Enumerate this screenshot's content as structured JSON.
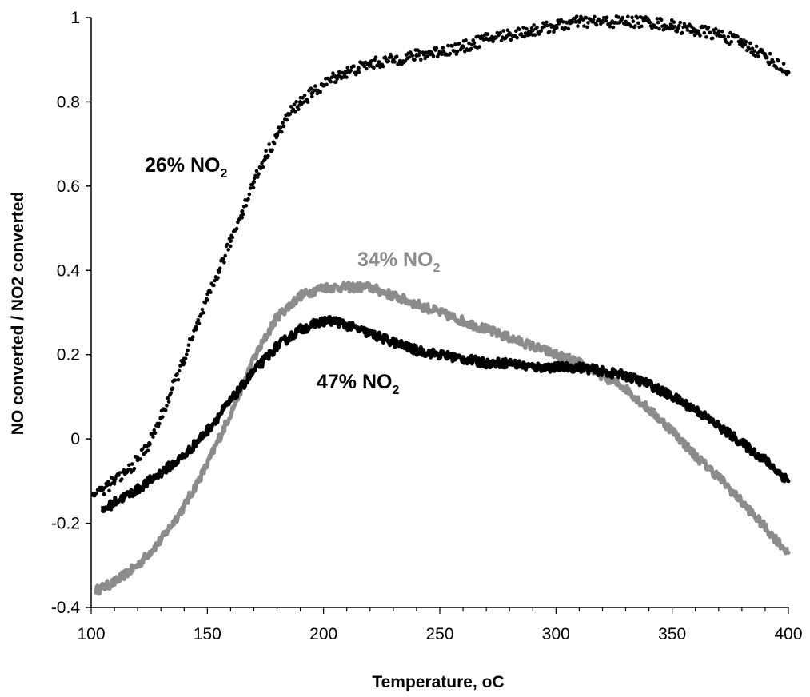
{
  "chart_data": {
    "type": "scatter",
    "title": "",
    "xlabel": "Temperature, ",
    "xlabel_unit": "oC",
    "ylabel": "NO converted / NO2 converted",
    "xlim": [
      100,
      400
    ],
    "ylim": [
      -0.4,
      1
    ],
    "x_ticks": [
      "100",
      "150",
      "200",
      "250",
      "300",
      "350",
      "400"
    ],
    "y_ticks": [
      "-0.4",
      "-0.2",
      "0",
      "0.2",
      "0.4",
      "0.6",
      "0.8",
      "1"
    ],
    "grid": false,
    "legend": "none",
    "series": [
      {
        "name": "26% NO2",
        "label_main": "26% NO",
        "label_sub": "2",
        "color": "#000000",
        "marker": "dot",
        "x": [
          101,
          105,
          110,
          115,
          120,
          125,
          130,
          135,
          140,
          145,
          150,
          155,
          160,
          165,
          170,
          175,
          180,
          185,
          190,
          195,
          200,
          205,
          210,
          215,
          220,
          230,
          240,
          250,
          260,
          270,
          280,
          290,
          300,
          310,
          320,
          330,
          340,
          350,
          360,
          370,
          380,
          390,
          400
        ],
        "y": [
          -0.13,
          -0.12,
          -0.1,
          -0.08,
          -0.05,
          -0.01,
          0.05,
          0.12,
          0.19,
          0.26,
          0.33,
          0.4,
          0.47,
          0.54,
          0.61,
          0.67,
          0.72,
          0.77,
          0.8,
          0.82,
          0.84,
          0.86,
          0.87,
          0.88,
          0.89,
          0.9,
          0.91,
          0.92,
          0.93,
          0.95,
          0.96,
          0.97,
          0.98,
          0.99,
          0.99,
          0.99,
          0.99,
          0.98,
          0.97,
          0.96,
          0.94,
          0.91,
          0.87
        ]
      },
      {
        "name": "34% NO2",
        "label_main": "34% NO",
        "label_sub": "2",
        "color": "#8c8c8c",
        "marker": "line",
        "x": [
          102,
          110,
          120,
          130,
          140,
          150,
          160,
          170,
          180,
          190,
          200,
          210,
          220,
          230,
          240,
          250,
          260,
          270,
          280,
          290,
          300,
          310,
          320,
          330,
          340,
          350,
          360,
          370,
          380,
          390,
          400
        ],
        "y": [
          -0.36,
          -0.34,
          -0.3,
          -0.24,
          -0.16,
          -0.06,
          0.06,
          0.19,
          0.29,
          0.34,
          0.36,
          0.36,
          0.36,
          0.34,
          0.32,
          0.3,
          0.28,
          0.26,
          0.24,
          0.22,
          0.2,
          0.18,
          0.15,
          0.12,
          0.07,
          0.02,
          -0.04,
          -0.09,
          -0.15,
          -0.21,
          -0.27
        ]
      },
      {
        "name": "47% NO2",
        "label_main": "47% NO",
        "label_sub": "2",
        "color": "#000000",
        "marker": "line",
        "x": [
          105,
          110,
          120,
          130,
          140,
          150,
          160,
          170,
          180,
          190,
          200,
          205,
          210,
          220,
          230,
          240,
          250,
          260,
          270,
          280,
          290,
          300,
          310,
          320,
          330,
          340,
          350,
          360,
          370,
          380,
          390,
          400
        ],
        "y": [
          -0.17,
          -0.15,
          -0.12,
          -0.08,
          -0.04,
          0.02,
          0.09,
          0.16,
          0.22,
          0.26,
          0.28,
          0.28,
          0.27,
          0.25,
          0.23,
          0.21,
          0.2,
          0.19,
          0.18,
          0.18,
          0.17,
          0.17,
          0.17,
          0.16,
          0.15,
          0.13,
          0.1,
          0.07,
          0.03,
          -0.01,
          -0.05,
          -0.1
        ]
      }
    ]
  }
}
